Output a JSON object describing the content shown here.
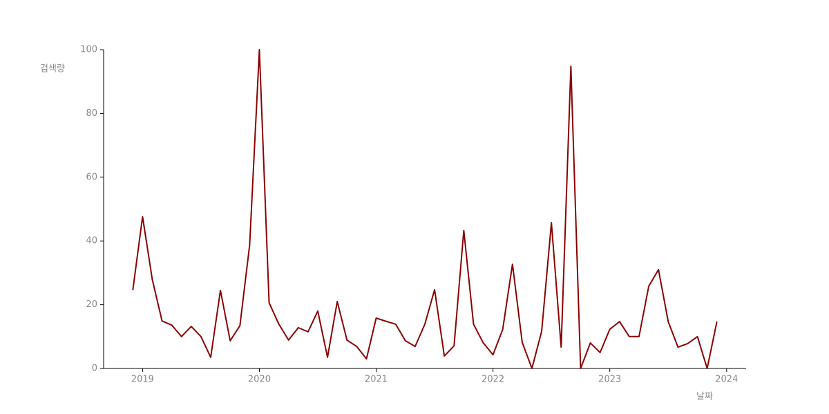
{
  "chart_data": {
    "type": "line",
    "x_label": "날짜",
    "y_label": "검색량",
    "x": [
      "2018-12",
      "2019-01",
      "2019-02",
      "2019-03",
      "2019-04",
      "2019-05",
      "2019-06",
      "2019-07",
      "2019-08",
      "2019-09",
      "2019-10",
      "2019-11",
      "2019-12",
      "2020-01",
      "2020-02",
      "2020-03",
      "2020-04",
      "2020-05",
      "2020-06",
      "2020-07",
      "2020-08",
      "2020-09",
      "2020-10",
      "2020-11",
      "2020-12",
      "2021-01",
      "2021-02",
      "2021-03",
      "2021-04",
      "2021-05",
      "2021-06",
      "2021-07",
      "2021-08",
      "2021-09",
      "2021-10",
      "2021-11",
      "2021-12",
      "2022-01",
      "2022-02",
      "2022-03",
      "2022-04",
      "2022-05",
      "2022-06",
      "2022-07",
      "2022-08",
      "2022-09",
      "2022-10",
      "2022-11",
      "2022-12",
      "2023-01",
      "2023-02",
      "2023-03",
      "2023-04",
      "2023-05",
      "2023-06",
      "2023-07",
      "2023-08",
      "2023-09",
      "2023-10",
      "2023-11",
      "2023-12"
    ],
    "series": [
      {
        "color": "#8b0000",
        "values": [
          24.6,
          47.6,
          27.9,
          14.9,
          13.6,
          10,
          13.2,
          10,
          3.5,
          24.5,
          8.7,
          13.4,
          38.7,
          100,
          20.6,
          13.9,
          8.9,
          12.8,
          11.5,
          18,
          3.5,
          21,
          8.9,
          6.9,
          3,
          15.8,
          14.8,
          13.9,
          8.7,
          6.9,
          13.9,
          24.7,
          3.9,
          7.1,
          43.3,
          13.9,
          8,
          4.3,
          12.3,
          32.7,
          8.2,
          0,
          11.7,
          45.7,
          6.7,
          94.8,
          0,
          8,
          5,
          12.3,
          14.7,
          10,
          10,
          25.8,
          31,
          14.7,
          6.7,
          7.8,
          10,
          0,
          14.7
        ]
      }
    ],
    "xlim": [
      "2018-09",
      "2024-03"
    ],
    "xticks": [
      2019,
      2020,
      2021,
      2022,
      2023,
      2024
    ],
    "ylim": [
      0,
      100
    ],
    "yticks": [
      0,
      20,
      40,
      60,
      80,
      100
    ]
  }
}
